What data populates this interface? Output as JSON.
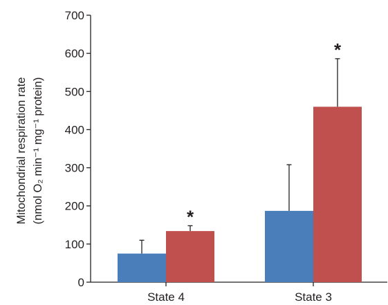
{
  "chart_data": {
    "type": "bar",
    "categories": [
      "State 4",
      "State 3"
    ],
    "series": [
      {
        "values": [
          75,
          187
        ],
        "errors": [
          35,
          121
        ],
        "significance": [
          "",
          ""
        ]
      },
      {
        "values": [
          134,
          460
        ],
        "errors": [
          14,
          126
        ],
        "significance": [
          "*",
          "*"
        ]
      }
    ],
    "colors": [
      "#4a7ebb",
      "#c0504d"
    ],
    "ylabel_line1": "Mitochondrial respiration rate",
    "ylabel_line2": "(nmol O₂ min⁻¹ mg⁻¹ protein)",
    "ylim": [
      0,
      700
    ],
    "yticks": [
      0,
      100,
      200,
      300,
      400,
      500,
      600,
      700
    ],
    "xlabel": "",
    "title": "",
    "legend": "none",
    "grid": false
  }
}
